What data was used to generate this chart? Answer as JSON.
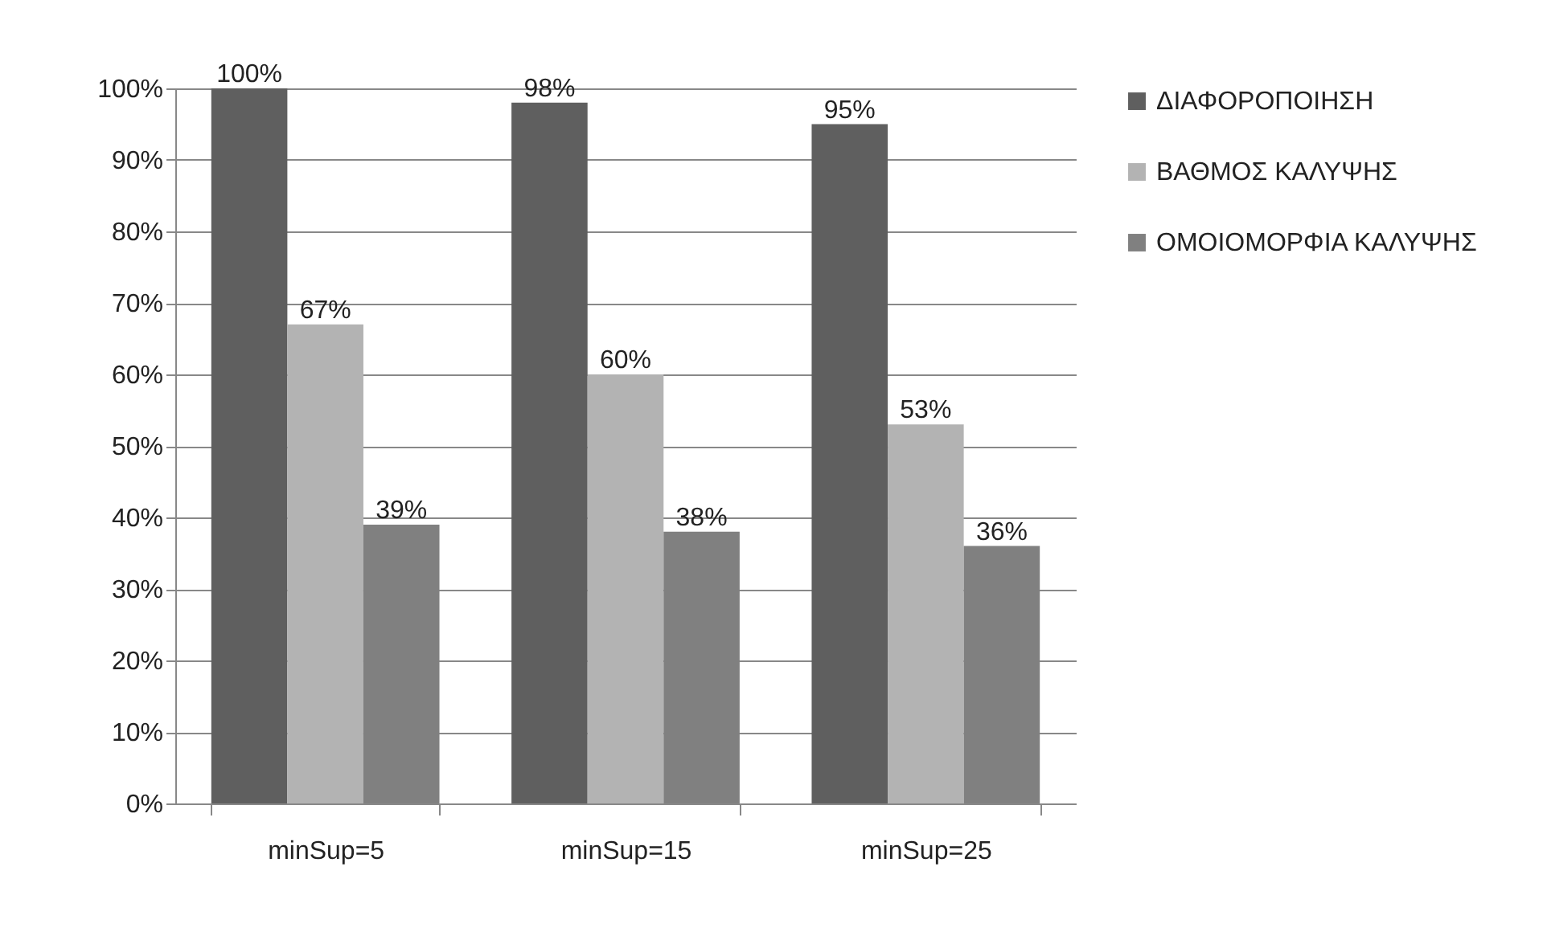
{
  "chart_data": {
    "type": "bar",
    "categories": [
      "minSup=5",
      "minSup=15",
      "minSup=25"
    ],
    "series": [
      {
        "name": "ΔΙΑΦΟΡΟΠΟΙΗΣΗ",
        "color": "#5f5f5f",
        "values": [
          100,
          98,
          95
        ],
        "value_labels": [
          "100%",
          "98%",
          "95%"
        ]
      },
      {
        "name": "ΒΑΘΜΟΣ ΚΑΛΥΨΗΣ",
        "color": "#b3b3b3",
        "values": [
          67,
          60,
          53
        ],
        "value_labels": [
          "67%",
          "60%",
          "53%"
        ]
      },
      {
        "name": "ΟΜΟΙΟΜΟΡΦΙΑ ΚΑΛΥΨΗΣ",
        "color": "#808080",
        "values": [
          39,
          38,
          36
        ],
        "value_labels": [
          "39%",
          "38%",
          "36%"
        ]
      }
    ],
    "ylim": [
      0,
      100
    ],
    "yticks": [
      {
        "value": 0,
        "label": "0%"
      },
      {
        "value": 10,
        "label": "10%"
      },
      {
        "value": 20,
        "label": "20%"
      },
      {
        "value": 30,
        "label": "30%"
      },
      {
        "value": 40,
        "label": "40%"
      },
      {
        "value": 50,
        "label": "50%"
      },
      {
        "value": 60,
        "label": "60%"
      },
      {
        "value": 70,
        "label": "70%"
      },
      {
        "value": 80,
        "label": "80%"
      },
      {
        "value": 90,
        "label": "90%"
      },
      {
        "value": 100,
        "label": "100%"
      }
    ],
    "grid": "y",
    "legend": "right"
  }
}
